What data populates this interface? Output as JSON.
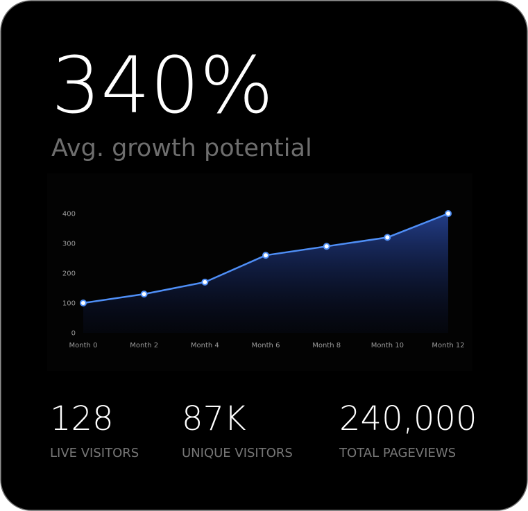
{
  "headline": "340%",
  "subtitle": "Avg. growth potential",
  "chart_data": {
    "type": "line",
    "categories": [
      "Month 0",
      "Month 2",
      "Month 4",
      "Month 6",
      "Month 8",
      "Month 10",
      "Month 12"
    ],
    "values": [
      100,
      130,
      170,
      260,
      290,
      320,
      400
    ],
    "color": "#4f8ff7",
    "ylim": [
      0,
      400
    ],
    "yticks": [
      0,
      100,
      200,
      300,
      400
    ],
    "grid": false,
    "area": true
  },
  "stats": [
    {
      "value": "128",
      "label": "LIVE VISITORS"
    },
    {
      "value": "87K",
      "label": "UNIQUE VISITORS"
    },
    {
      "value": "240,000",
      "label": "TOTAL PAGEVIEWS"
    }
  ]
}
